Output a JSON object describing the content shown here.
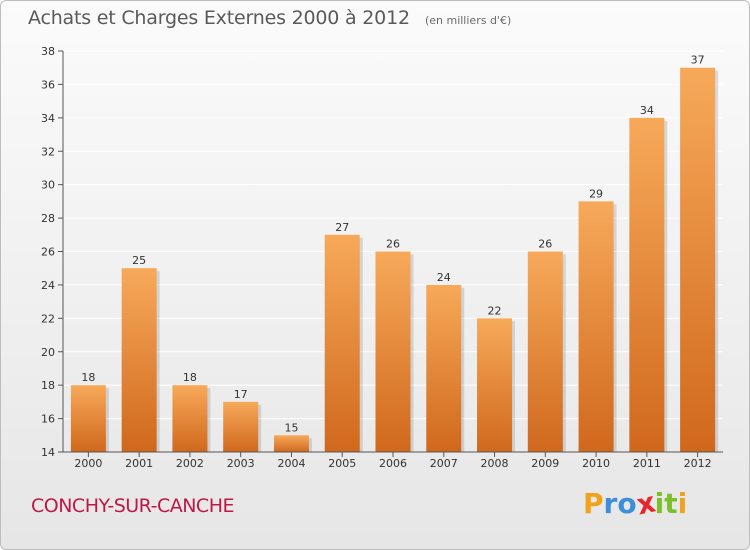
{
  "title": "Achats et Charges Externes 2000 à 2012",
  "subtitle": "(en milliers d'€)",
  "commune": "CONCHY-SUR-CANCHE",
  "logo": {
    "text": "Proxiti",
    "letters": [
      {
        "char": "P",
        "color": "#f0a21a"
      },
      {
        "char": "r",
        "color": "#3c8fd8"
      },
      {
        "char": "o",
        "color": "#3c8fd8"
      },
      {
        "char": "x",
        "color": "#e8262a"
      },
      {
        "char": "i",
        "color": "#7bbf2a"
      },
      {
        "char": "t",
        "color": "#7bbf2a"
      },
      {
        "char": "i",
        "color": "#f0a21a"
      }
    ]
  },
  "colors": {
    "bar_top": "#f7a95a",
    "bar_bottom": "#d0681c",
    "axis": "#555555",
    "grid": "#ffffff",
    "commune": "#c0174a"
  },
  "chart_data": {
    "type": "bar",
    "categories": [
      "2000",
      "2001",
      "2002",
      "2003",
      "2004",
      "2005",
      "2006",
      "2007",
      "2008",
      "2009",
      "2010",
      "2011",
      "2012"
    ],
    "values": [
      18,
      25,
      18,
      17,
      15,
      27,
      26,
      24,
      22,
      26,
      29,
      34,
      37
    ],
    "ylim": [
      14,
      38
    ],
    "yticks": [
      14,
      16,
      18,
      20,
      22,
      24,
      26,
      28,
      30,
      32,
      34,
      36,
      38
    ],
    "grid": true,
    "data_labels": true
  }
}
